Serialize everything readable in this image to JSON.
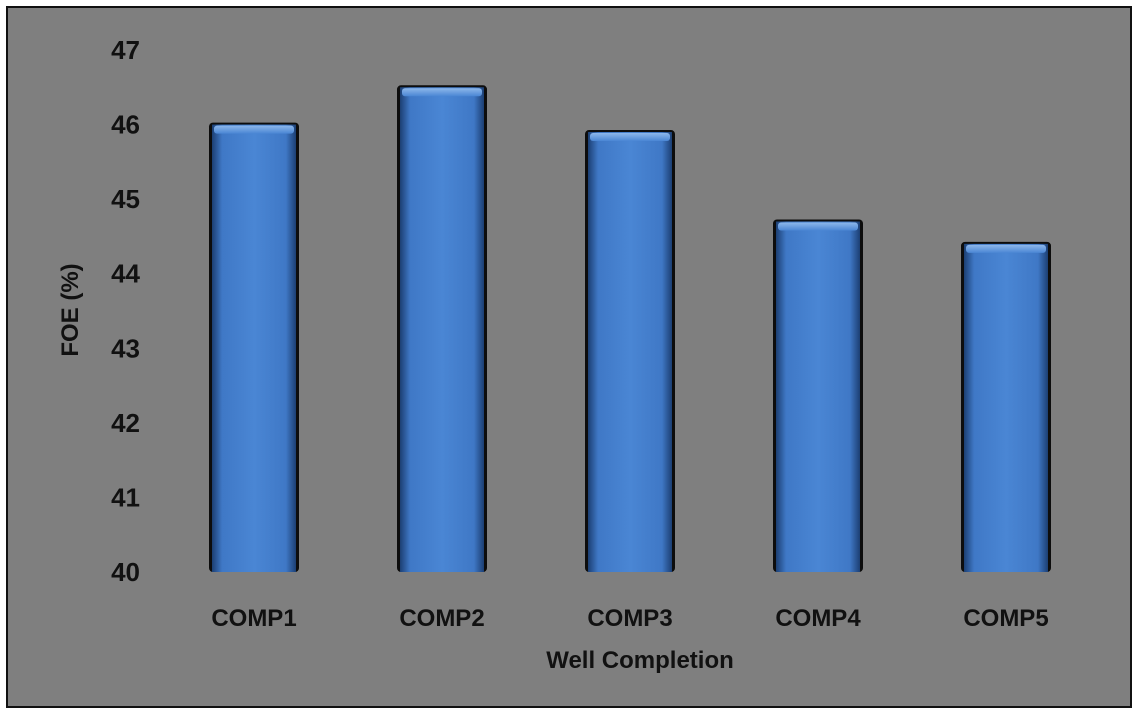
{
  "chart_data": {
    "type": "bar",
    "title": "",
    "xlabel": "Well Completion",
    "ylabel": "FOE (%)",
    "ylim": [
      40,
      47
    ],
    "y_ticks": [
      "40",
      "41",
      "42",
      "43",
      "44",
      "45",
      "46",
      "47"
    ],
    "categories": [
      "COMP1",
      "COMP2",
      "COMP3",
      "COMP4",
      "COMP5"
    ],
    "values": [
      46.0,
      46.5,
      45.9,
      44.7,
      44.4
    ],
    "grid": false,
    "legend": "none",
    "bar_color": "#4a86d4"
  }
}
